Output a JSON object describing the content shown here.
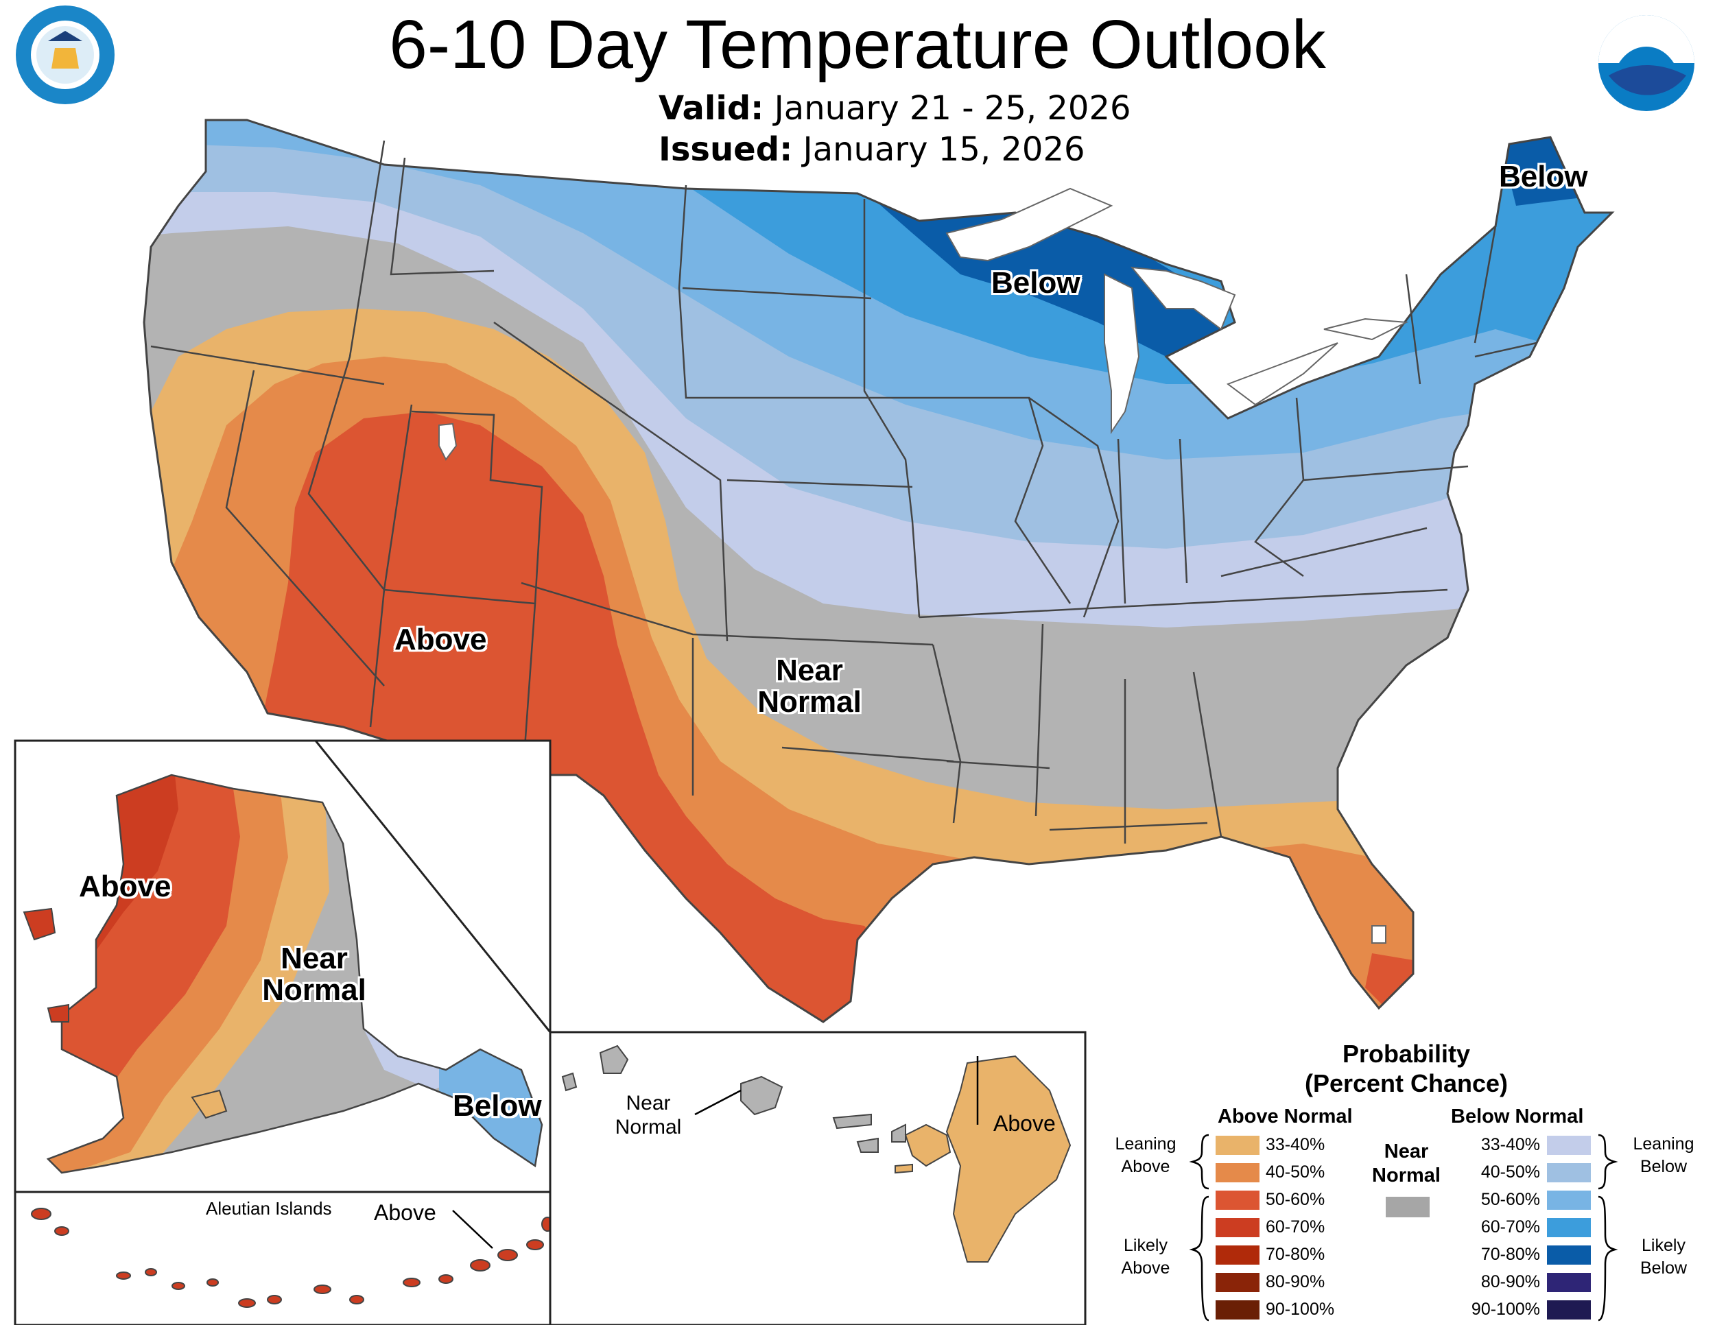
{
  "header": {
    "title": "6-10 Day Temperature Outlook",
    "valid_label": "Valid:",
    "valid_dates": "January 21 - 25, 2026",
    "issued_label": "Issued:",
    "issued_date": "January 15, 2026"
  },
  "logos": {
    "doc_seal": "DEPARTMENT OF COMMERCE · UNITED STATES OF AMERICA",
    "noaa": "NOAA"
  },
  "map_labels": {
    "conus_above": "Above",
    "conus_near_normal": "Near Normal",
    "conus_below_mi": "Below",
    "conus_below_me": "Below",
    "ak_above": "Above",
    "ak_near_normal": "Near Normal",
    "ak_below": "Below",
    "aleutian_title": "Aleutian Islands",
    "aleutian_above": "Above",
    "hi_near_normal": "Near Normal",
    "hi_above": "Above"
  },
  "legend": {
    "title_line1": "Probability",
    "title_line2": "(Percent Chance)",
    "above_header": "Above Normal",
    "below_header": "Below Normal",
    "near_normal": "Near Normal",
    "near_normal_color": "#a6a6a6",
    "leaning_above": "Leaning Above",
    "likely_above": "Likely Above",
    "leaning_below": "Leaning Below",
    "likely_below": "Likely Below",
    "above": [
      {
        "range": "33-40%",
        "color": "#e9b36a"
      },
      {
        "range": "40-50%",
        "color": "#e58a4a"
      },
      {
        "range": "50-60%",
        "color": "#dc5532"
      },
      {
        "range": "60-70%",
        "color": "#cc3d21"
      },
      {
        "range": "70-80%",
        "color": "#b02a0a"
      },
      {
        "range": "80-90%",
        "color": "#8a2408"
      },
      {
        "range": "90-100%",
        "color": "#6a1f05"
      }
    ],
    "below": [
      {
        "range": "33-40%",
        "color": "#c3cdea"
      },
      {
        "range": "40-50%",
        "color": "#9fc0e2"
      },
      {
        "range": "50-60%",
        "color": "#78b4e4"
      },
      {
        "range": "60-70%",
        "color": "#3c9ddc"
      },
      {
        "range": "70-80%",
        "color": "#0a5ca8"
      },
      {
        "range": "80-90%",
        "color": "#2e2576"
      },
      {
        "range": "90-100%",
        "color": "#1e1a52"
      }
    ]
  }
}
